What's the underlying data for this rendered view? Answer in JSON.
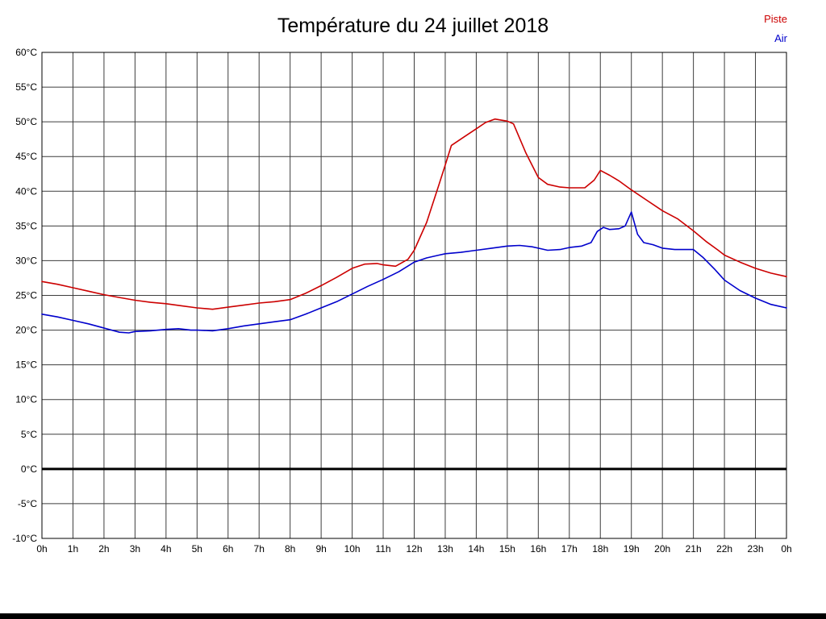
{
  "chart_data": {
    "type": "line",
    "title": "Température du 24 juillet 2018",
    "xlabel": "",
    "ylabel": "",
    "xlim": [
      0,
      24
    ],
    "ylim": [
      -10,
      60
    ],
    "grid": true,
    "legend_position": "top-right",
    "zero_line_value": 0,
    "colors": {
      "grid": "#3d3d3d",
      "axis": "#000000",
      "zero_line": "#000000",
      "background": "#ffffff"
    },
    "y_ticks": [
      {
        "value": 60,
        "label": "60°C"
      },
      {
        "value": 55,
        "label": "55°C"
      },
      {
        "value": 50,
        "label": "50°C"
      },
      {
        "value": 45,
        "label": "45°C"
      },
      {
        "value": 40,
        "label": "40°C"
      },
      {
        "value": 35,
        "label": "35°C"
      },
      {
        "value": 30,
        "label": "30°C"
      },
      {
        "value": 25,
        "label": "25°C"
      },
      {
        "value": 20,
        "label": "20°C"
      },
      {
        "value": 15,
        "label": "15°C"
      },
      {
        "value": 10,
        "label": "10°C"
      },
      {
        "value": 5,
        "label": "5°C"
      },
      {
        "value": 0,
        "label": "0°C"
      },
      {
        "value": -5,
        "label": "-5°C"
      },
      {
        "value": -10,
        "label": "-10°C"
      }
    ],
    "x_ticks": [
      {
        "value": 0,
        "label": "0h"
      },
      {
        "value": 1,
        "label": "1h"
      },
      {
        "value": 2,
        "label": "2h"
      },
      {
        "value": 3,
        "label": "3h"
      },
      {
        "value": 4,
        "label": "4h"
      },
      {
        "value": 5,
        "label": "5h"
      },
      {
        "value": 6,
        "label": "6h"
      },
      {
        "value": 7,
        "label": "7h"
      },
      {
        "value": 8,
        "label": "8h"
      },
      {
        "value": 9,
        "label": "9h"
      },
      {
        "value": 10,
        "label": "10h"
      },
      {
        "value": 11,
        "label": "11h"
      },
      {
        "value": 12,
        "label": "12h"
      },
      {
        "value": 13,
        "label": "13h"
      },
      {
        "value": 14,
        "label": "14h"
      },
      {
        "value": 15,
        "label": "15h"
      },
      {
        "value": 16,
        "label": "16h"
      },
      {
        "value": 17,
        "label": "17h"
      },
      {
        "value": 18,
        "label": "18h"
      },
      {
        "value": 19,
        "label": "19h"
      },
      {
        "value": 20,
        "label": "20h"
      },
      {
        "value": 21,
        "label": "21h"
      },
      {
        "value": 22,
        "label": "22h"
      },
      {
        "value": 23,
        "label": "23h"
      },
      {
        "value": 24,
        "label": "0h"
      }
    ],
    "series": [
      {
        "name": "Piste",
        "color": "#cc0000",
        "points": [
          [
            0,
            27
          ],
          [
            0.5,
            26.6
          ],
          [
            1,
            26.1
          ],
          [
            1.5,
            25.6
          ],
          [
            2,
            25.1
          ],
          [
            2.5,
            24.7
          ],
          [
            3,
            24.3
          ],
          [
            3.5,
            24
          ],
          [
            4,
            23.8
          ],
          [
            4.5,
            23.5
          ],
          [
            5,
            23.2
          ],
          [
            5.5,
            23
          ],
          [
            6,
            23.3
          ],
          [
            6.5,
            23.6
          ],
          [
            7,
            23.9
          ],
          [
            7.5,
            24.1
          ],
          [
            8,
            24.4
          ],
          [
            8.5,
            25.3
          ],
          [
            9,
            26.4
          ],
          [
            9.5,
            27.6
          ],
          [
            10,
            28.9
          ],
          [
            10.4,
            29.5
          ],
          [
            10.8,
            29.6
          ],
          [
            11,
            29.4
          ],
          [
            11.4,
            29.2
          ],
          [
            11.8,
            30.2
          ],
          [
            12,
            31.5
          ],
          [
            12.4,
            35.5
          ],
          [
            12.8,
            41
          ],
          [
            13,
            43.8
          ],
          [
            13.2,
            46.6
          ],
          [
            13.6,
            47.8
          ],
          [
            14,
            49
          ],
          [
            14.3,
            49.9
          ],
          [
            14.6,
            50.4
          ],
          [
            15,
            50.1
          ],
          [
            15.2,
            49.7
          ],
          [
            15.6,
            45.5
          ],
          [
            16,
            42
          ],
          [
            16.3,
            41
          ],
          [
            16.7,
            40.6
          ],
          [
            17,
            40.5
          ],
          [
            17.5,
            40.5
          ],
          [
            17.8,
            41.6
          ],
          [
            18,
            43
          ],
          [
            18.3,
            42.3
          ],
          [
            18.6,
            41.5
          ],
          [
            19,
            40.2
          ],
          [
            19.5,
            38.7
          ],
          [
            20,
            37.2
          ],
          [
            20.5,
            36
          ],
          [
            21,
            34.3
          ],
          [
            21.4,
            32.8
          ],
          [
            21.8,
            31.5
          ],
          [
            22,
            30.8
          ],
          [
            22.5,
            29.8
          ],
          [
            23,
            28.9
          ],
          [
            23.5,
            28.2
          ],
          [
            24,
            27.7
          ]
        ]
      },
      {
        "name": "Air",
        "color": "#0000cc",
        "points": [
          [
            0,
            22.3
          ],
          [
            0.5,
            21.9
          ],
          [
            1,
            21.4
          ],
          [
            1.5,
            20.9
          ],
          [
            2,
            20.3
          ],
          [
            2.5,
            19.7
          ],
          [
            2.8,
            19.6
          ],
          [
            3,
            19.8
          ],
          [
            3.5,
            19.9
          ],
          [
            4,
            20.1
          ],
          [
            4.4,
            20.2
          ],
          [
            4.8,
            20
          ],
          [
            5,
            20
          ],
          [
            5.5,
            19.9
          ],
          [
            6,
            20.2
          ],
          [
            6.5,
            20.6
          ],
          [
            7,
            20.9
          ],
          [
            7.5,
            21.2
          ],
          [
            8,
            21.5
          ],
          [
            8.5,
            22.3
          ],
          [
            9,
            23.2
          ],
          [
            9.5,
            24.1
          ],
          [
            10,
            25.2
          ],
          [
            10.5,
            26.3
          ],
          [
            11,
            27.3
          ],
          [
            11.5,
            28.4
          ],
          [
            12,
            29.8
          ],
          [
            12.4,
            30.4
          ],
          [
            12.8,
            30.8
          ],
          [
            13,
            31
          ],
          [
            13.5,
            31.2
          ],
          [
            14,
            31.5
          ],
          [
            14.5,
            31.8
          ],
          [
            15,
            32.1
          ],
          [
            15.4,
            32.2
          ],
          [
            15.8,
            32
          ],
          [
            16,
            31.8
          ],
          [
            16.3,
            31.5
          ],
          [
            16.7,
            31.6
          ],
          [
            17,
            31.9
          ],
          [
            17.4,
            32.1
          ],
          [
            17.7,
            32.6
          ],
          [
            17.9,
            34.2
          ],
          [
            18.1,
            34.8
          ],
          [
            18.3,
            34.5
          ],
          [
            18.6,
            34.6
          ],
          [
            18.8,
            35
          ],
          [
            19,
            37
          ],
          [
            19.2,
            33.8
          ],
          [
            19.4,
            32.6
          ],
          [
            19.7,
            32.3
          ],
          [
            20,
            31.8
          ],
          [
            20.4,
            31.6
          ],
          [
            21,
            31.6
          ],
          [
            21.3,
            30.5
          ],
          [
            21.7,
            28.7
          ],
          [
            22,
            27.2
          ],
          [
            22.5,
            25.7
          ],
          [
            23,
            24.6
          ],
          [
            23.5,
            23.7
          ],
          [
            24,
            23.2
          ]
        ]
      }
    ]
  }
}
